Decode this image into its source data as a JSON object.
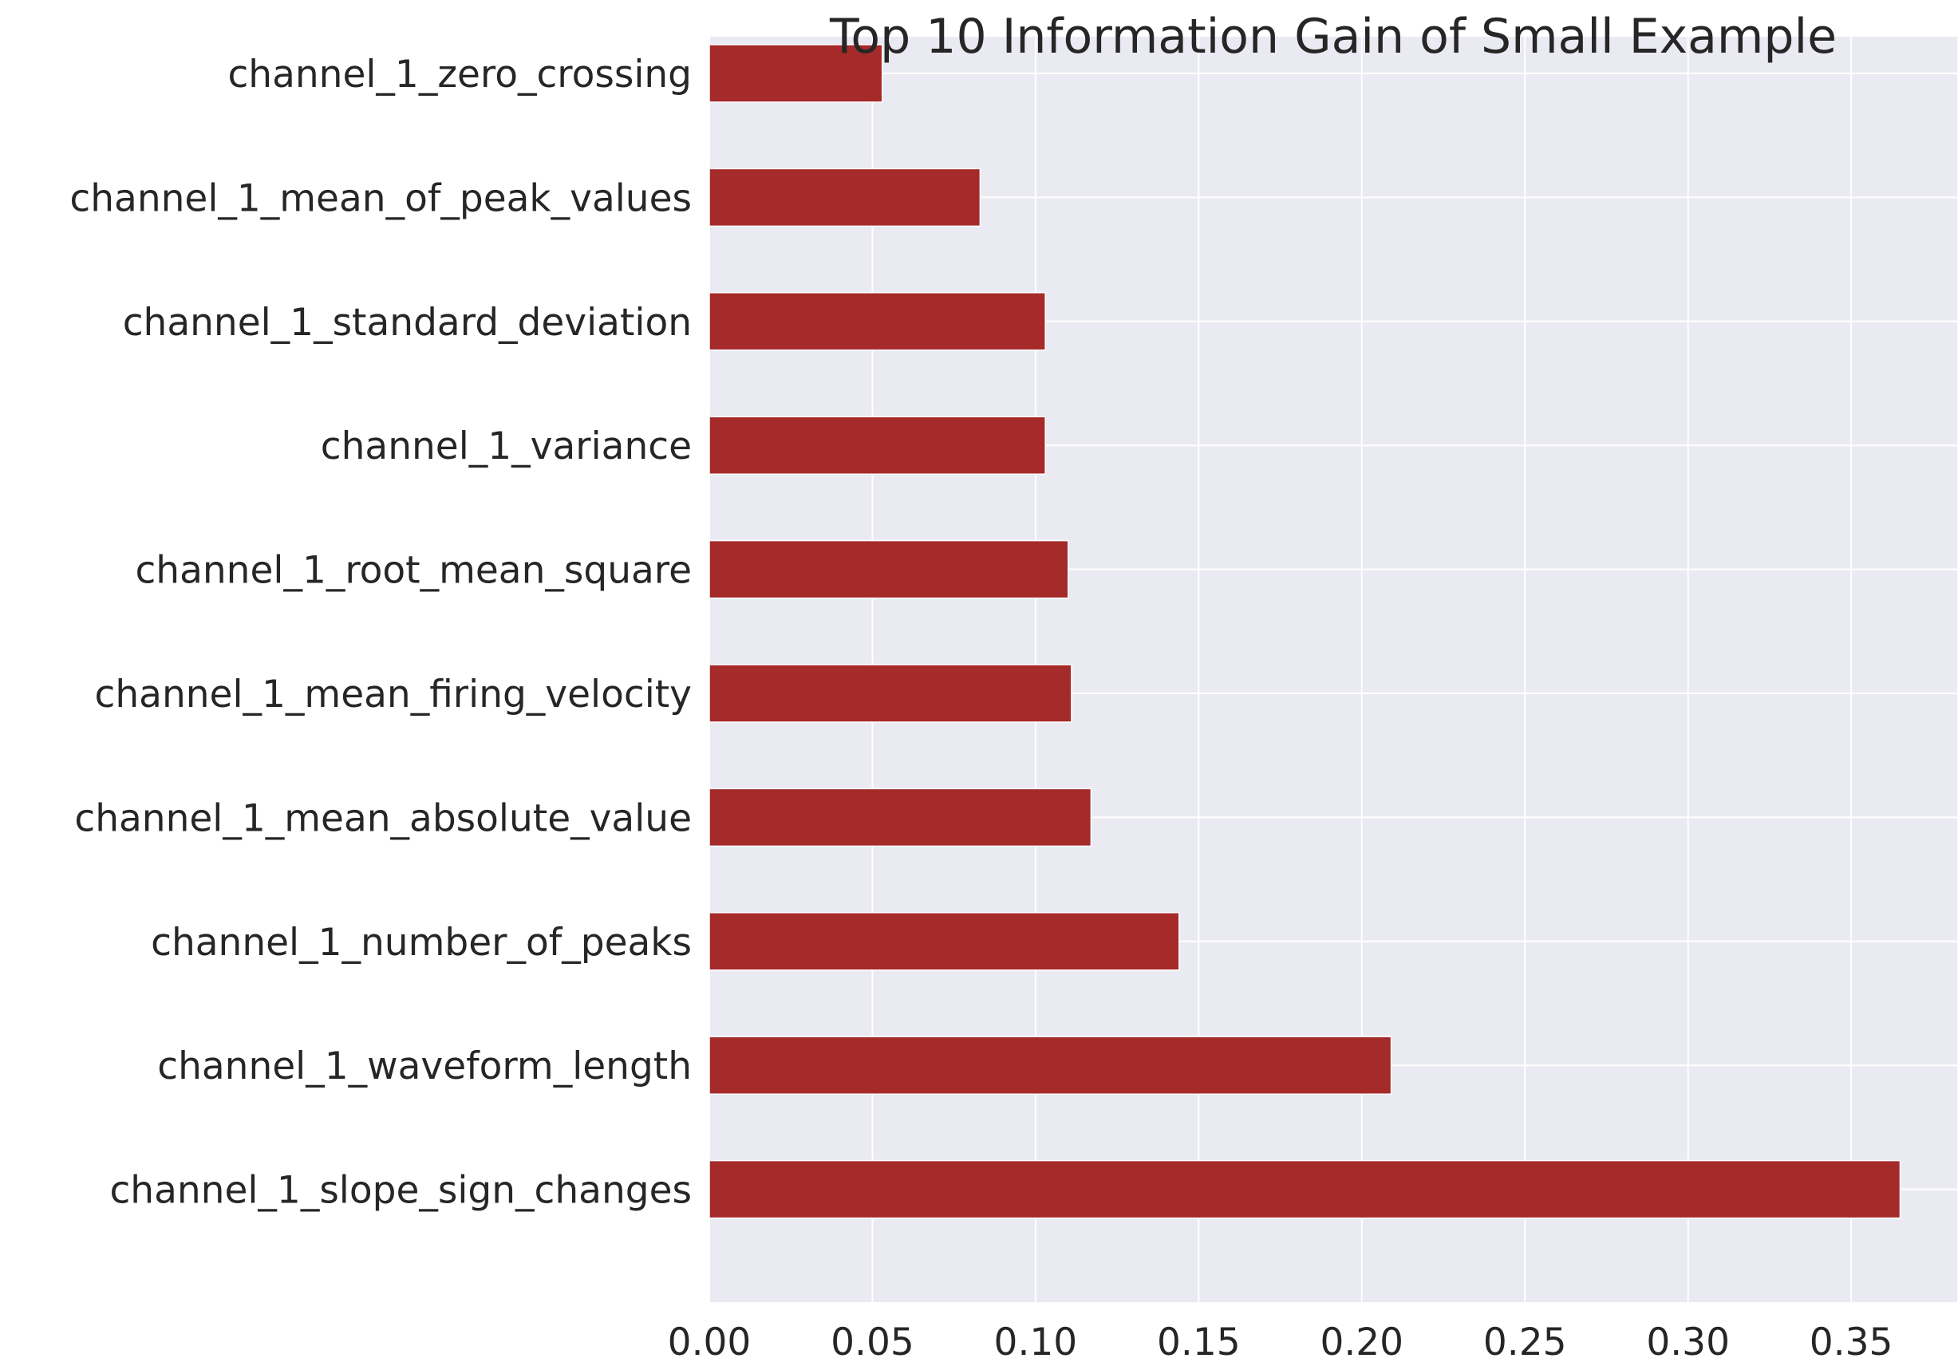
{
  "colors": {
    "bar": "#a52a2a",
    "plot_background": "#eaeaf2",
    "grid": "#ffffff",
    "text": "#262626"
  },
  "chart_data": {
    "type": "bar",
    "orientation": "horizontal",
    "title": "Top 10 Information Gain of Small Example",
    "xlabel": "",
    "ylabel": "",
    "categories": [
      "channel_1_zero_crossing",
      "channel_1_mean_of_peak_values",
      "channel_1_standard_deviation",
      "channel_1_variance",
      "channel_1_root_mean_square",
      "channel_1_mean_firing_velocity",
      "channel_1_mean_absolute_value",
      "channel_1_number_of_peaks",
      "channel_1_waveform_length",
      "channel_1_slope_sign_changes"
    ],
    "values": [
      0.053,
      0.083,
      0.103,
      0.103,
      0.11,
      0.111,
      0.117,
      0.144,
      0.209,
      0.365
    ],
    "xlim": [
      0,
      0.3825
    ],
    "xticks": [
      0.0,
      0.05,
      0.1,
      0.15,
      0.2,
      0.25,
      0.3,
      0.35
    ],
    "xtick_labels": [
      "0.00",
      "0.05",
      "0.10",
      "0.15",
      "0.20",
      "0.25",
      "0.30",
      "0.35"
    ],
    "grid": true,
    "legend": "none"
  }
}
